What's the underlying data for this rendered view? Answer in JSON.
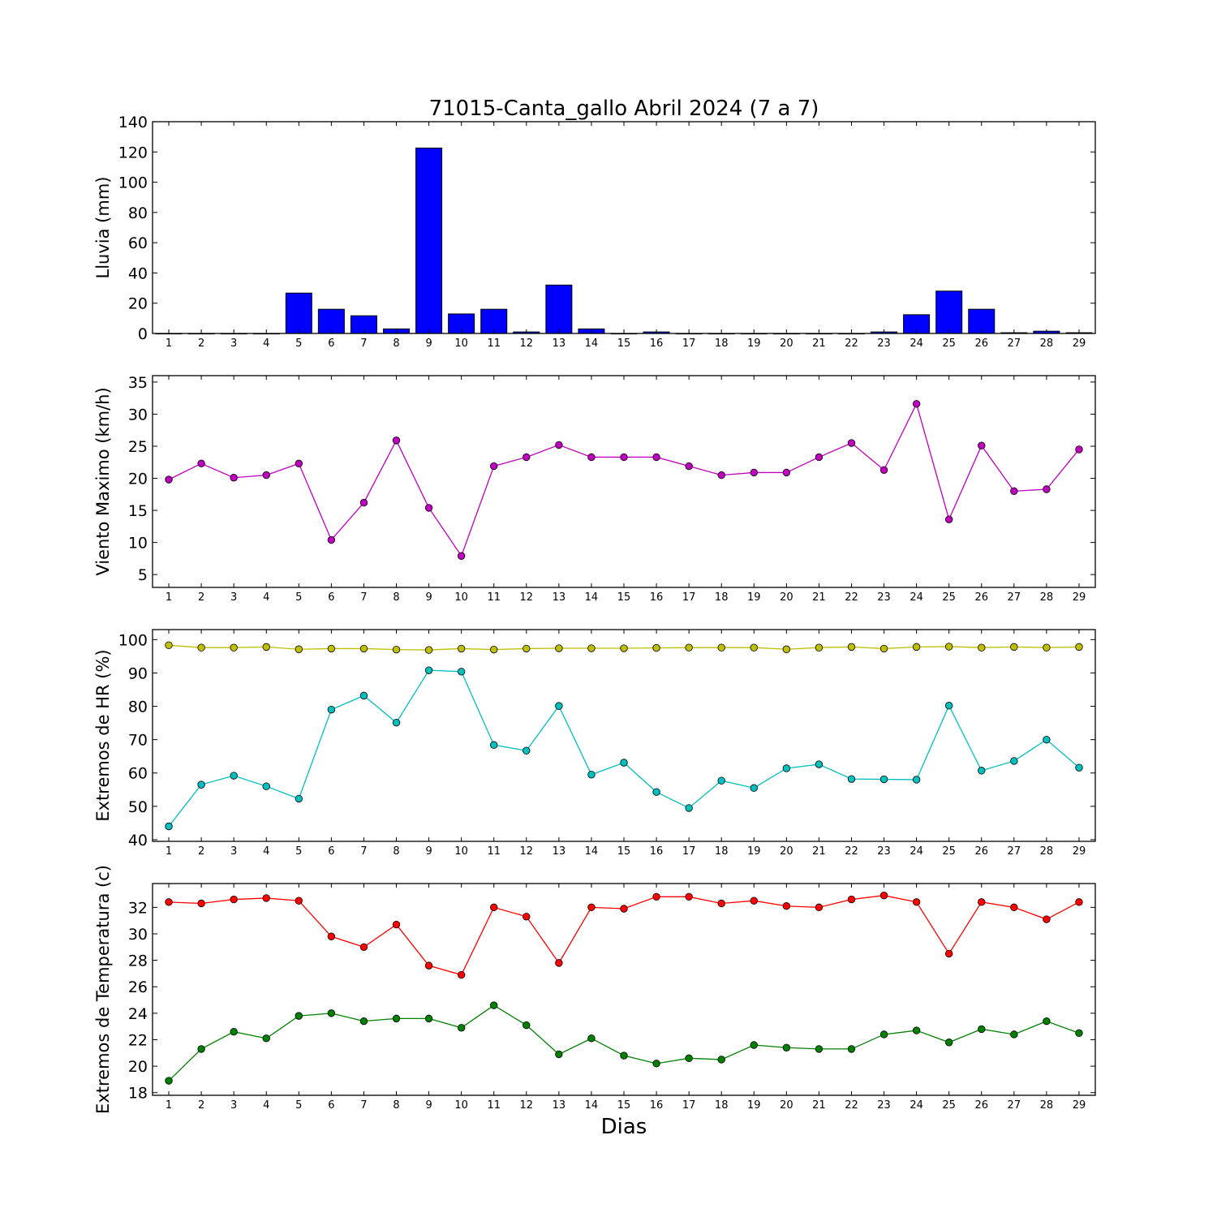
{
  "figure": {
    "title": "71015-Canta_gallo Abril 2024  (7 a 7)",
    "xlabel": "Dias"
  },
  "chart_data": [
    {
      "type": "bar",
      "ylabel": "Lluvia (mm)",
      "x": [
        1,
        2,
        3,
        4,
        5,
        6,
        7,
        8,
        9,
        10,
        11,
        12,
        13,
        14,
        15,
        16,
        17,
        18,
        19,
        20,
        21,
        22,
        23,
        24,
        25,
        26,
        27,
        28,
        29
      ],
      "values": [
        0,
        0,
        0,
        0,
        26.7,
        16,
        11.7,
        3,
        122.6,
        12.9,
        16,
        1,
        32,
        3,
        0,
        1,
        0,
        0,
        0,
        0,
        0,
        0,
        1,
        12.4,
        28,
        16,
        0.5,
        1.5,
        0.5
      ],
      "ylim": [
        0,
        140
      ],
      "yticks": [
        0,
        20,
        40,
        60,
        80,
        100,
        120,
        140
      ],
      "color": "#0000ff"
    },
    {
      "type": "line",
      "ylabel": "Viento Maximo (km/h)",
      "x": [
        1,
        2,
        3,
        4,
        5,
        6,
        7,
        8,
        9,
        10,
        11,
        12,
        13,
        14,
        15,
        16,
        17,
        18,
        19,
        20,
        21,
        22,
        23,
        24,
        25,
        26,
        27,
        28,
        29
      ],
      "series": [
        {
          "values": [
            19.8,
            22.3,
            20.1,
            20.5,
            22.3,
            10.4,
            16.2,
            25.9,
            15.4,
            7.9,
            21.9,
            23.3,
            25.2,
            23.3,
            23.3,
            23.3,
            21.9,
            20.5,
            20.9,
            20.9,
            23.3,
            25.5,
            21.3,
            31.6,
            13.6,
            25.1,
            18.0,
            18.3,
            24.5
          ],
          "color": "#bf00bf"
        }
      ],
      "ylim": [
        3,
        36
      ],
      "yticks": [
        5,
        10,
        15,
        20,
        25,
        30,
        35
      ]
    },
    {
      "type": "line",
      "ylabel": "Extremos de HR (%)",
      "x": [
        1,
        2,
        3,
        4,
        5,
        6,
        7,
        8,
        9,
        10,
        11,
        12,
        13,
        14,
        15,
        16,
        17,
        18,
        19,
        20,
        21,
        22,
        23,
        24,
        25,
        26,
        27,
        28,
        29
      ],
      "series": [
        {
          "values": [
            98.3,
            97.6,
            97.6,
            97.8,
            97.1,
            97.3,
            97.3,
            97.0,
            96.9,
            97.3,
            97.0,
            97.3,
            97.4,
            97.4,
            97.4,
            97.5,
            97.6,
            97.6,
            97.6,
            97.1,
            97.6,
            97.8,
            97.3,
            97.8,
            97.9,
            97.6,
            97.8,
            97.6,
            97.8
          ],
          "color": "#bfbf00"
        },
        {
          "values": [
            44.0,
            56.5,
            59.2,
            56.0,
            52.3,
            79.0,
            83.2,
            75.1,
            90.8,
            90.4,
            68.4,
            66.7,
            80.1,
            59.5,
            63.1,
            54.3,
            49.5,
            57.7,
            55.5,
            61.4,
            62.6,
            58.2,
            58.1,
            58.0,
            80.2,
            60.7,
            63.6,
            70.0,
            61.6
          ],
          "color": "#00bfbf"
        }
      ],
      "ylim": [
        39.5,
        103
      ],
      "yticks": [
        40,
        50,
        60,
        70,
        80,
        90,
        100
      ]
    },
    {
      "type": "line",
      "ylabel": "Extremos de Temperatura (c)",
      "x": [
        1,
        2,
        3,
        4,
        5,
        6,
        7,
        8,
        9,
        10,
        11,
        12,
        13,
        14,
        15,
        16,
        17,
        18,
        19,
        20,
        21,
        22,
        23,
        24,
        25,
        26,
        27,
        28,
        29
      ],
      "series": [
        {
          "values": [
            32.4,
            32.3,
            32.6,
            32.7,
            32.5,
            29.8,
            29.0,
            30.7,
            27.6,
            26.9,
            32.0,
            31.3,
            27.8,
            32.0,
            31.9,
            32.8,
            32.8,
            32.3,
            32.5,
            32.1,
            32.0,
            32.6,
            32.9,
            32.4,
            28.5,
            32.4,
            32.0,
            31.1,
            32.4
          ],
          "color": "#ff0000"
        },
        {
          "values": [
            18.9,
            21.3,
            22.6,
            22.1,
            23.8,
            24.0,
            23.4,
            23.6,
            23.6,
            22.9,
            24.6,
            23.1,
            20.9,
            22.1,
            20.8,
            20.2,
            20.6,
            20.5,
            21.6,
            21.4,
            21.3,
            21.3,
            22.4,
            22.7,
            21.8,
            22.8,
            22.4,
            23.4,
            22.5
          ],
          "color": "#008000"
        }
      ],
      "ylim": [
        17.8,
        33.8
      ],
      "yticks": [
        18,
        20,
        22,
        24,
        26,
        28,
        30,
        32
      ]
    }
  ]
}
